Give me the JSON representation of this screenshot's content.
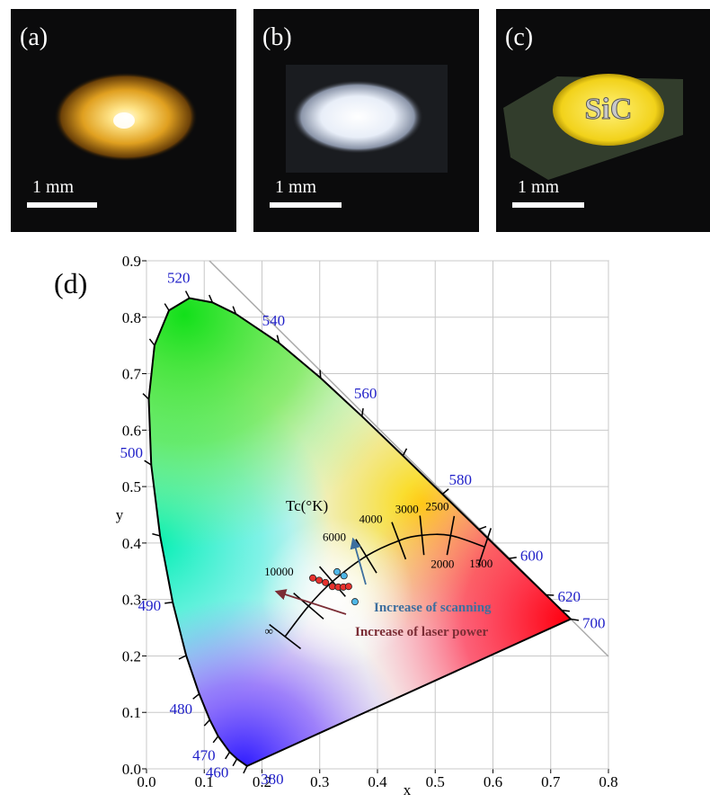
{
  "panels": [
    {
      "label": "(a)",
      "scale_bar": "1 mm"
    },
    {
      "label": "(b)",
      "scale_bar": "1 mm"
    },
    {
      "label": "(c)",
      "scale_bar": "1 mm",
      "sample_text": "SiC"
    }
  ],
  "chart_data": {
    "type": "chromaticity",
    "panel_label": "(d)",
    "xlabel": "x",
    "ylabel": "y",
    "xlim": [
      0,
      0.8
    ],
    "ylim": [
      0,
      0.9
    ],
    "xticks": [
      {
        "value": 0,
        "label": "0.0"
      },
      0.1,
      0.2,
      0.3,
      0.4,
      0.5,
      0.6,
      0.7,
      0.8
    ],
    "yticks": [
      {
        "value": 0,
        "label": "0.0"
      },
      0.1,
      0.2,
      0.3,
      0.4,
      0.5,
      0.6,
      0.7,
      0.8,
      0.9
    ],
    "grid": true,
    "spectral_locus": {
      "color": "#000000",
      "x": [
        0.1741,
        0.1566,
        0.144,
        0.1241,
        0.1096,
        0.0913,
        0.0687,
        0.0454,
        0.0235,
        0.0082,
        0.0039,
        0.0139,
        0.0389,
        0.0743,
        0.1142,
        0.1547,
        0.2296,
        0.3016,
        0.3731,
        0.4441,
        0.5125,
        0.5752,
        0.627,
        0.6915,
        0.719,
        0.7347
      ],
      "y": [
        0.005,
        0.0177,
        0.0297,
        0.0578,
        0.0868,
        0.1327,
        0.2007,
        0.295,
        0.4127,
        0.5384,
        0.6548,
        0.7502,
        0.812,
        0.8338,
        0.8262,
        0.8059,
        0.7543,
        0.6923,
        0.6245,
        0.5547,
        0.4866,
        0.4242,
        0.3725,
        0.3083,
        0.2809,
        0.2653
      ]
    },
    "wavelength_labels": {
      "color": "#1f1fc8",
      "labels": [
        380,
        460,
        470,
        480,
        490,
        500,
        520,
        540,
        560,
        580,
        600,
        620,
        700
      ],
      "x": [
        0.1741,
        0.144,
        0.1241,
        0.0913,
        0.0454,
        0.0082,
        0.0743,
        0.2296,
        0.3731,
        0.5125,
        0.627,
        0.6915,
        0.7347
      ],
      "y": [
        0.005,
        0.0297,
        0.0578,
        0.1327,
        0.295,
        0.5384,
        0.8338,
        0.7543,
        0.6245,
        0.4866,
        0.3725,
        0.3083,
        0.2653
      ]
    },
    "planckian_locus": {
      "title": "Tc(°K)",
      "labels": [
        1500,
        2000,
        2500,
        3000,
        4000,
        6000,
        10000,
        "∞"
      ],
      "x": [
        0.5857,
        0.5267,
        0.477,
        0.4369,
        0.3805,
        0.3221,
        0.2807,
        0.2399
      ],
      "y": [
        0.3931,
        0.4133,
        0.4137,
        0.4041,
        0.3768,
        0.3318,
        0.2884,
        0.2342
      ]
    },
    "series": [
      {
        "color": "#e8322e",
        "x": [
          0.288,
          0.299,
          0.31,
          0.322,
          0.332,
          0.341,
          0.35
        ],
        "y": [
          0.338,
          0.334,
          0.33,
          0.323,
          0.322,
          0.322,
          0.323
        ]
      },
      {
        "color": "#4fb8e8",
        "x": [
          0.33,
          0.342,
          0.361
        ],
        "y": [
          0.349,
          0.342,
          0.296
        ]
      }
    ],
    "annotations": [
      {
        "text": "Increase of scanning",
        "color": "#3d6f9e"
      },
      {
        "text": "Increase of laser power",
        "color": "#7b2d35"
      }
    ]
  }
}
